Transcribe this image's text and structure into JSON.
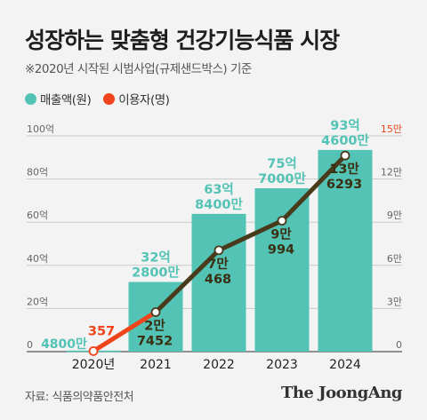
{
  "title": "성장하는 맞춤형 건강기능식품 시장",
  "subtitle": "※2020년 시작된 시범사업(규제샌드박스) 기준",
  "legend": [
    {
      "label": "매출액(원)",
      "color": "#52c3b4"
    },
    {
      "label": "이용자(명)",
      "color": "#f0441c"
    }
  ],
  "source": "자료: 식품의약품안전처",
  "brand": "The JoongAng",
  "chart_data": {
    "type": "bar",
    "categories": [
      "2020년",
      "2021",
      "2022",
      "2023",
      "2024"
    ],
    "series": [
      {
        "name": "매출액(원)",
        "type": "bar",
        "axis": "left",
        "values": [
          0.48,
          32.28,
          63.84,
          75.7,
          93.46
        ],
        "labels": [
          [
            "4800만"
          ],
          [
            "32억",
            "2800만"
          ],
          [
            "63억",
            "8400만"
          ],
          [
            "75억",
            "7000만"
          ],
          [
            "93억",
            "4600만"
          ]
        ]
      },
      {
        "name": "이용자(명)",
        "type": "line",
        "axis": "right",
        "values": [
          357,
          27452,
          70468,
          90994,
          136293
        ],
        "labels": [
          [
            "357"
          ],
          [
            "2만",
            "7452"
          ],
          [
            "7만",
            "468"
          ],
          [
            "9만",
            "994"
          ],
          [
            "13만",
            "6293"
          ]
        ]
      }
    ],
    "left_axis": {
      "ticks": [
        "0",
        "20억",
        "40억",
        "60억",
        "80억",
        "100억"
      ],
      "range": [
        0,
        100
      ]
    },
    "right_axis": {
      "ticks": [
        "0",
        "3만",
        "6만",
        "9만",
        "12만",
        "15만"
      ],
      "range": [
        0,
        150000
      ]
    },
    "colors": {
      "bar": "#52c3b4",
      "line_orange": "#f0441c",
      "line_dark": "#4a3a1c",
      "bar_label": "#ffffff",
      "bar_label_top": "#52c3b4"
    }
  }
}
